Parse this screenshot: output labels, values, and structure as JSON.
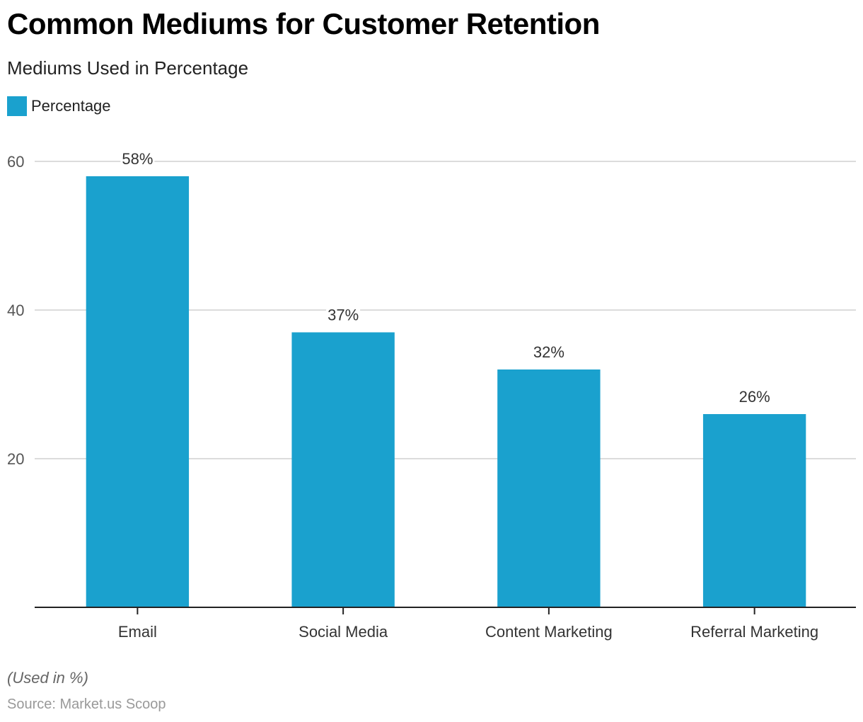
{
  "title": "Common Mediums for Customer Retention",
  "subtitle": "Mediums Used in Percentage",
  "legend": [
    {
      "label": "Percentage",
      "color": "#1aa1ce"
    }
  ],
  "footer": {
    "note": "(Used in %)",
    "source": "Source: Market.us Scoop"
  },
  "chart_data": {
    "type": "bar",
    "title": "Common Mediums for Customer Retention",
    "subtitle": "Mediums Used in Percentage",
    "xlabel": "",
    "ylabel": "",
    "categories": [
      "Email",
      "Social Media",
      "Content Marketing",
      "Referral Marketing"
    ],
    "series": [
      {
        "name": "Percentage",
        "color": "#1aa1ce",
        "values": [
          58,
          37,
          32,
          26
        ]
      }
    ],
    "data_labels": [
      "58%",
      "37%",
      "32%",
      "26%"
    ],
    "ylim": [
      0,
      60
    ],
    "yticks": [
      20,
      40,
      60
    ],
    "grid": true,
    "legend_position": "top-left"
  }
}
